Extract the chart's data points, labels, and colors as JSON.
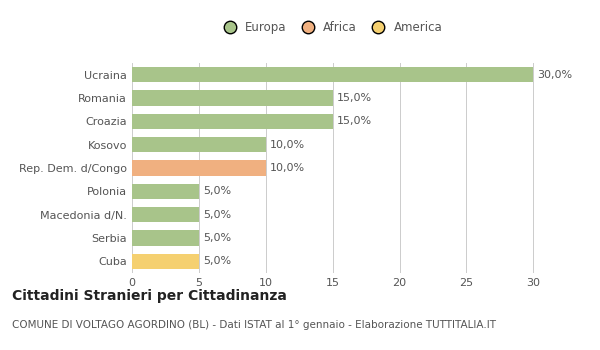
{
  "categories": [
    "Ucraina",
    "Romania",
    "Croazia",
    "Kosovo",
    "Rep. Dem. d/Congo",
    "Polonia",
    "Macedonia d/N.",
    "Serbia",
    "Cuba"
  ],
  "values": [
    30.0,
    15.0,
    15.0,
    10.0,
    10.0,
    5.0,
    5.0,
    5.0,
    5.0
  ],
  "labels": [
    "30,0%",
    "15,0%",
    "15,0%",
    "10,0%",
    "10,0%",
    "5,0%",
    "5,0%",
    "5,0%",
    "5,0%"
  ],
  "colors": [
    "#a8c48a",
    "#a8c48a",
    "#a8c48a",
    "#a8c48a",
    "#f0b080",
    "#a8c48a",
    "#a8c48a",
    "#a8c48a",
    "#f5d070"
  ],
  "legend_labels": [
    "Europa",
    "Africa",
    "America"
  ],
  "legend_colors": [
    "#a8c48a",
    "#f0b080",
    "#f5d070"
  ],
  "xlim": [
    0,
    30
  ],
  "xticks": [
    0,
    5,
    10,
    15,
    20,
    25,
    30
  ],
  "title": "Cittadini Stranieri per Cittadinanza",
  "subtitle": "COMUNE DI VOLTAGO AGORDINO (BL) - Dati ISTAT al 1° gennaio - Elaborazione TUTTITALIA.IT",
  "bg_color": "#ffffff",
  "grid_color": "#cccccc",
  "bar_height": 0.65,
  "label_fontsize": 8,
  "tick_fontsize": 8,
  "title_fontsize": 10,
  "subtitle_fontsize": 7.5,
  "legend_fontsize": 8.5,
  "text_color": "#555555",
  "title_color": "#222222"
}
